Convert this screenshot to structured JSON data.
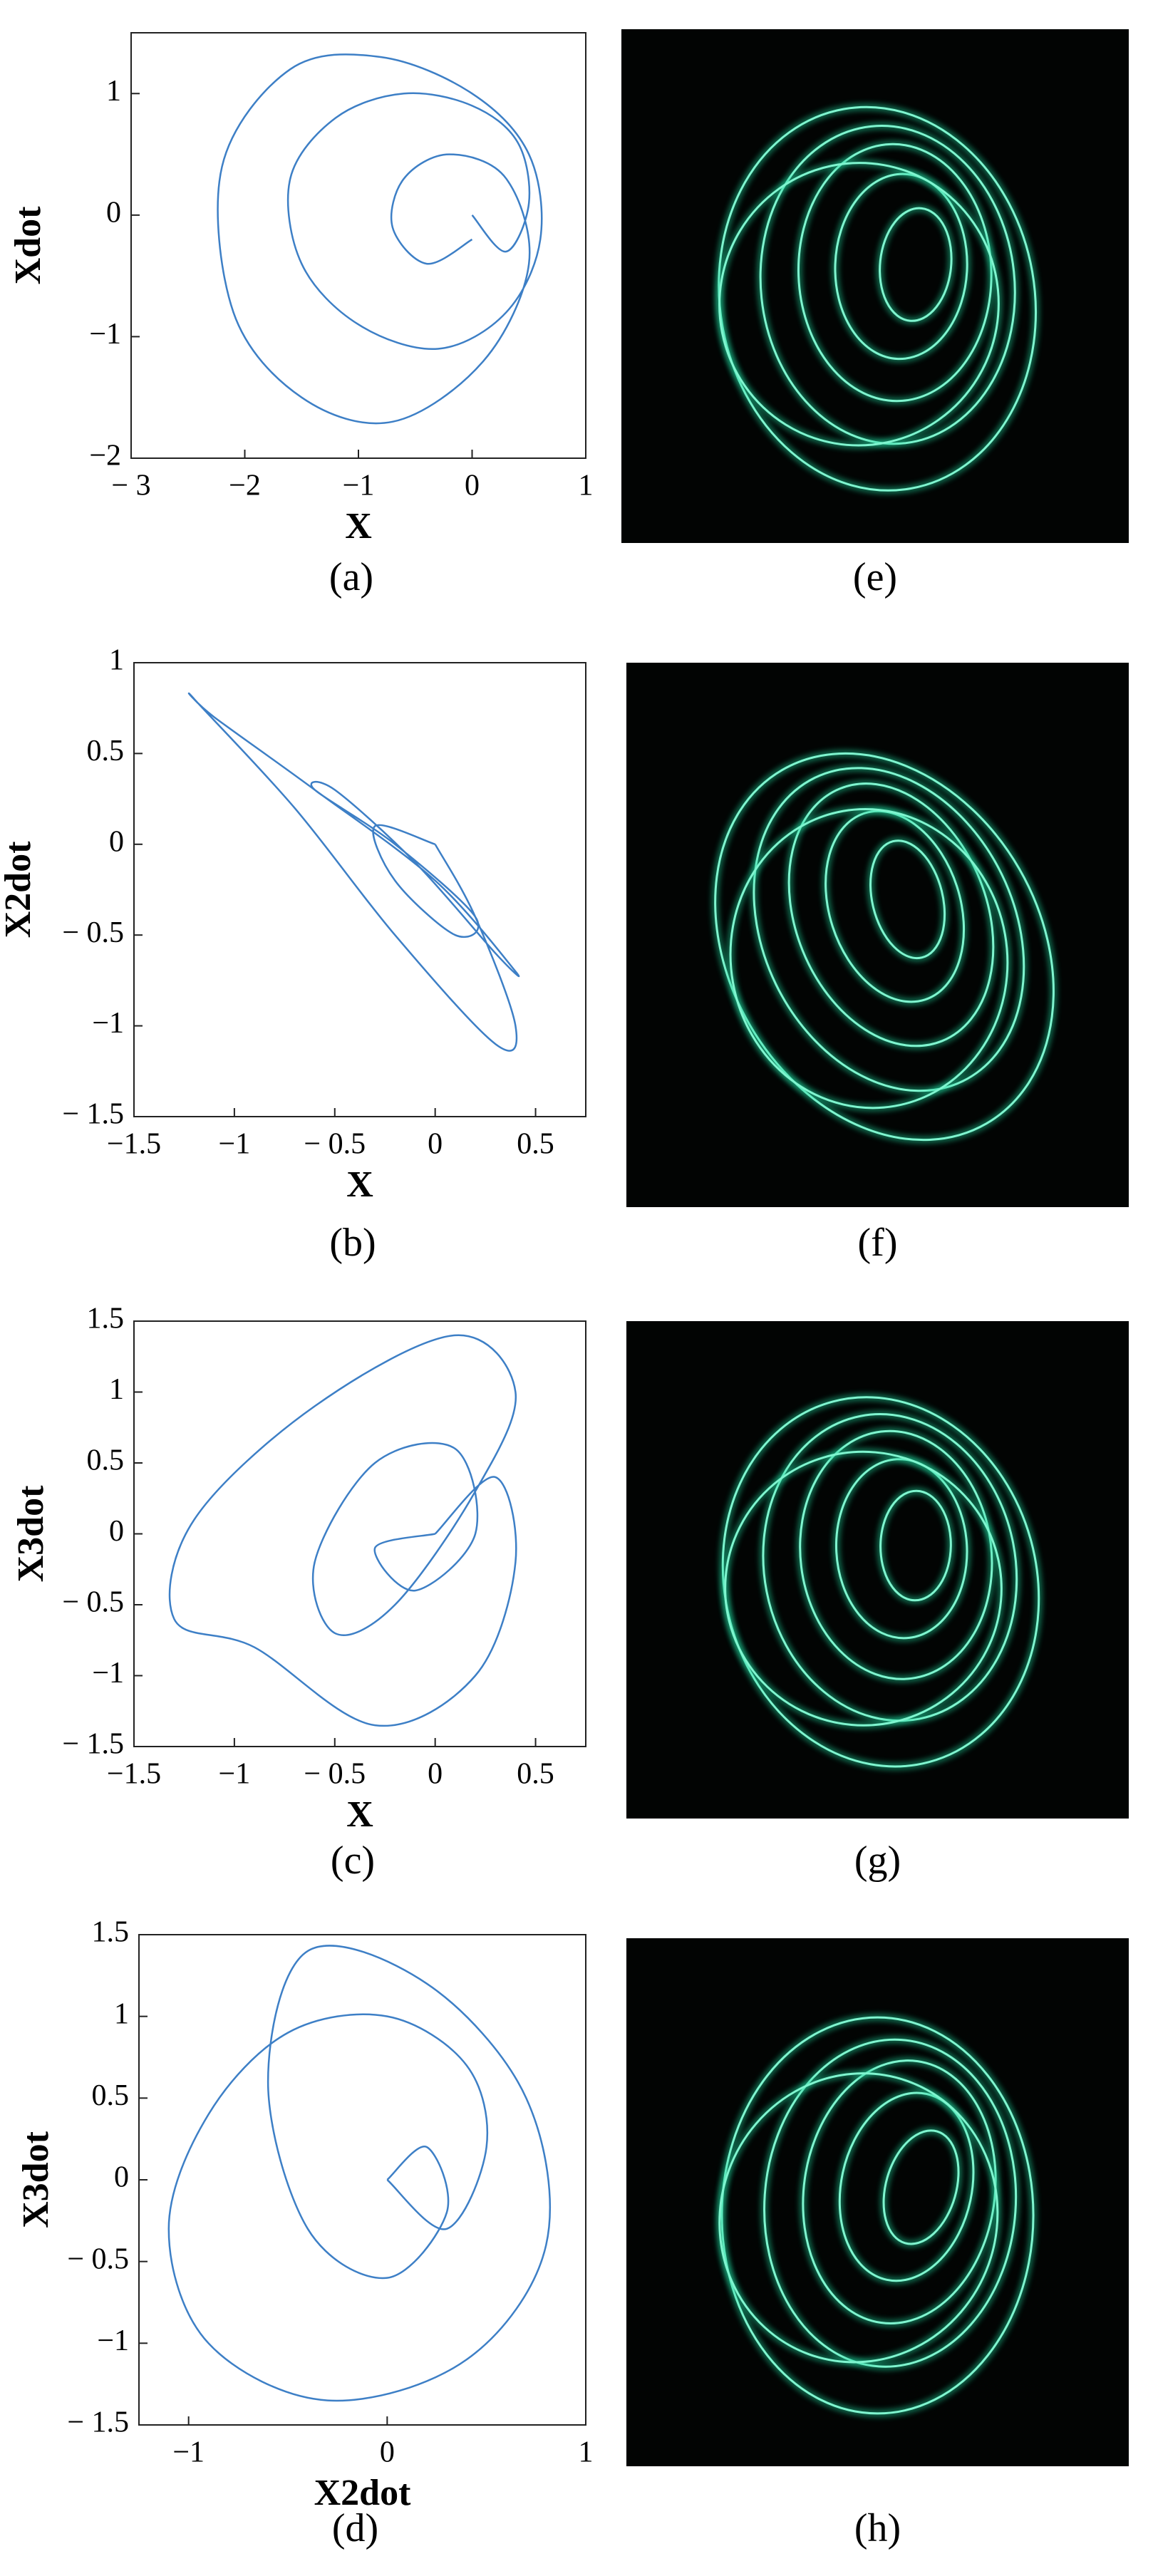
{
  "chart_data": [
    {
      "type": "line",
      "xlabel": "X",
      "ylabel": "Xdot",
      "caption": "(a)",
      "xlim": [
        -3,
        1
      ],
      "ylim": [
        -2,
        1.5
      ],
      "xticks": [
        {
          "value": -3,
          "label": "− 3"
        },
        {
          "value": -2,
          "label": "−2"
        },
        {
          "value": -1,
          "label": "−1"
        },
        0,
        1
      ],
      "yticks": [
        {
          "value": -2,
          "label": "−2"
        },
        {
          "value": -1,
          "label": "−1"
        },
        0,
        1
      ],
      "x": [
        0,
        0.3,
        0.5,
        0.4,
        0,
        -0.6,
        -1.2,
        -1.6,
        -1.5,
        -1,
        -0.3,
        0.3,
        0.6,
        0.5,
        0,
        -0.8,
        -1.6,
        -2.2,
        -2.1,
        -1.5,
        -0.7,
        0.1,
        0.5,
        0.3,
        -0.2,
        -0.6,
        -0.7,
        -0.4,
        0
      ],
      "series": [
        {
          "color": "#3d7fc6",
          "values": [
            0,
            -0.3,
            0.1,
            0.6,
            0.9,
            1.0,
            0.8,
            0.3,
            -0.4,
            -0.9,
            -1.1,
            -0.8,
            -0.2,
            0.5,
            1.0,
            1.3,
            1.2,
            0.4,
            -0.8,
            -1.5,
            -1.7,
            -1.2,
            -0.4,
            0.3,
            0.5,
            0.3,
            -0.1,
            -0.4,
            -0.2
          ]
        }
      ]
    },
    {
      "type": "line",
      "xlabel": "X",
      "ylabel": "X2dot",
      "caption": "(b)",
      "xlim": [
        -1.5,
        0.75
      ],
      "ylim": [
        -1.5,
        1
      ],
      "xticks": [
        {
          "value": -1.5,
          "label": "−1.5"
        },
        {
          "value": -1,
          "label": "−1"
        },
        {
          "value": -0.5,
          "label": "− 0.5"
        },
        0,
        0.5
      ],
      "yticks": [
        {
          "value": -1.5,
          "label": "− 1.5"
        },
        {
          "value": -1,
          "label": "−1"
        },
        {
          "value": -0.5,
          "label": "− 0.5"
        },
        0,
        0.5,
        1
      ],
      "x": [
        0,
        0.2,
        0.4,
        0.3,
        -0.2,
        -0.7,
        -1.2,
        -1.1,
        -0.6,
        0,
        0.4,
        0.3,
        -0.1,
        -0.5,
        -0.6,
        -0.2,
        0.2,
        0.1,
        -0.2,
        -0.3,
        0
      ],
      "series": [
        {
          "color": "#3d7fc6",
          "values": [
            0,
            -0.4,
            -1.0,
            -1.1,
            -0.5,
            0.2,
            0.8,
            0.7,
            0.3,
            -0.2,
            -0.7,
            -0.6,
            -0.1,
            0.3,
            0.3,
            0,
            -0.4,
            -0.5,
            -0.2,
            0.1,
            0
          ]
        }
      ]
    },
    {
      "type": "line",
      "xlabel": "X",
      "ylabel": "X3dot",
      "caption": "(c)",
      "xlim": [
        -1.5,
        0.75
      ],
      "ylim": [
        -1.5,
        1.5
      ],
      "xticks": [
        {
          "value": -1.5,
          "label": "−1.5"
        },
        {
          "value": -1,
          "label": "−1"
        },
        {
          "value": -0.5,
          "label": "− 0.5"
        },
        0,
        0.5
      ],
      "yticks": [
        {
          "value": -1.5,
          "label": "− 1.5"
        },
        {
          "value": -1,
          "label": "−1"
        },
        {
          "value": -0.5,
          "label": "− 0.5"
        },
        0,
        0.5,
        1,
        1.5
      ],
      "x": [
        0,
        0.3,
        0.4,
        0.2,
        -0.3,
        -0.9,
        -1.3,
        -1.2,
        -0.6,
        0.1,
        0.4,
        0.2,
        -0.2,
        -0.5,
        -0.6,
        -0.3,
        0.1,
        0.2,
        -0.1,
        -0.3,
        0
      ],
      "series": [
        {
          "color": "#3d7fc6",
          "values": [
            0,
            0.4,
            -0.2,
            -1.0,
            -1.35,
            -0.8,
            -0.6,
            0.1,
            0.9,
            1.4,
            1.0,
            0.3,
            -0.5,
            -0.7,
            -0.2,
            0.5,
            0.6,
            0,
            -0.4,
            -0.1,
            0
          ]
        }
      ]
    },
    {
      "type": "line",
      "xlabel": "X2dot",
      "ylabel": "X3dot",
      "caption": "(d)",
      "xlim": [
        -1.25,
        1
      ],
      "ylim": [
        -1.5,
        1.5
      ],
      "xticks": [
        {
          "value": -1,
          "label": "−1"
        },
        0,
        1
      ],
      "yticks": [
        {
          "value": -1.5,
          "label": "− 1.5"
        },
        {
          "value": -1,
          "label": "−1"
        },
        {
          "value": -0.5,
          "label": "− 0.5"
        },
        0,
        0.5,
        1,
        1.5
      ],
      "x": [
        0,
        0.3,
        0.5,
        0.4,
        0,
        -0.5,
        -0.9,
        -1.1,
        -0.9,
        -0.3,
        0.4,
        0.8,
        0.7,
        0.2,
        -0.4,
        -0.6,
        -0.4,
        0,
        0.3,
        0.2,
        0
      ],
      "series": [
        {
          "color": "#3d7fc6",
          "values": [
            0,
            -0.3,
            0.2,
            0.7,
            1.0,
            0.9,
            0.4,
            -0.3,
            -1.0,
            -1.35,
            -1.1,
            -0.4,
            0.5,
            1.2,
            1.4,
            0.6,
            -0.3,
            -0.6,
            -0.2,
            0.2,
            0
          ]
        }
      ]
    }
  ],
  "photos": [
    "(e)",
    "(f)",
    "(g)",
    "(h)"
  ]
}
